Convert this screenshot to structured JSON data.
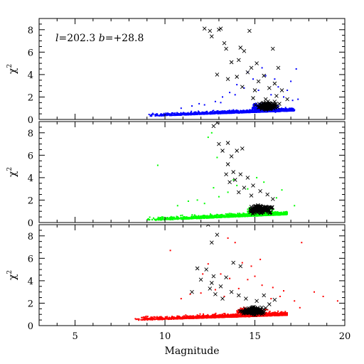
{
  "chart_data": {
    "type": "scatter",
    "xlabel": "Magnitude",
    "xlim": [
      3,
      20
    ],
    "x_ticks": [
      5,
      10,
      15,
      20
    ],
    "x_tick_labels": [
      "5",
      "10",
      "15",
      "20"
    ],
    "shared_x": true,
    "ylabel": "χ",
    "ylabel_superscript": "2",
    "annotation": {
      "l_label": "l",
      "l_value": "=202.3",
      "b_label": "b",
      "b_value": "=+28.8",
      "panel": 0
    },
    "panels": [
      {
        "ylim": [
          0,
          9
        ],
        "y_ticks": [
          0,
          2,
          4,
          6,
          8
        ],
        "y_tick_labels": [
          "0",
          "2",
          "4",
          "6",
          "8"
        ],
        "series": [
          {
            "marker": "dot",
            "color": "#0000ff",
            "cloud": {
              "x_range": [
                9,
                17.2
              ],
              "y_base": 0.35,
              "y_slope": 0.06,
              "y_spread": 0.25,
              "count": 1500
            },
            "dense_region": {
              "x_range": [
                14.5,
                16.5
              ],
              "y_center": 1.1,
              "y_spread": 0.5,
              "count": 600
            },
            "points": [
              [
                12.8,
                1.6
              ],
              [
                13.2,
                2.0
              ],
              [
                13.6,
                2.4
              ],
              [
                14.0,
                3.1
              ],
              [
                14.4,
                2.8
              ],
              [
                14.9,
                3.6
              ],
              [
                15.2,
                2.6
              ],
              [
                15.6,
                3.9
              ],
              [
                15.9,
                2.2
              ],
              [
                16.3,
                2.9
              ],
              [
                16.6,
                2.0
              ],
              [
                17.0,
                3.4
              ],
              [
                17.3,
                4.5
              ],
              [
                17.4,
                1.8
              ],
              [
                13.9,
                2.2
              ],
              [
                14.6,
                4.2
              ],
              [
                15.4,
                4.6
              ],
              [
                16.1,
                3.6
              ],
              [
                13.1,
                1.5
              ],
              [
                12.2,
                1.3
              ],
              [
                11.5,
                1.2
              ],
              [
                10.9,
                1.0
              ],
              [
                11.9,
                1.4
              ],
              [
                16.8,
                2.6
              ],
              [
                17.1,
                1.7
              ]
            ]
          },
          {
            "marker": "x",
            "color": "#000000",
            "points": [
              [
                12.2,
                8.1
              ],
              [
                12.5,
                7.9
              ],
              [
                12.6,
                7.4
              ],
              [
                13.0,
                8.0
              ],
              [
                13.1,
                8.1
              ],
              [
                14.7,
                7.9
              ],
              [
                13.3,
                6.8
              ],
              [
                13.4,
                6.3
              ],
              [
                14.2,
                6.4
              ],
              [
                14.4,
                6.1
              ],
              [
                13.7,
                5.1
              ],
              [
                16.0,
                6.3
              ],
              [
                14.1,
                5.3
              ],
              [
                15.1,
                5.0
              ],
              [
                16.3,
                4.6
              ],
              [
                14.6,
                4.2
              ],
              [
                14.8,
                4.6
              ],
              [
                12.9,
                4.0
              ],
              [
                13.5,
                3.6
              ],
              [
                14.0,
                3.8
              ],
              [
                15.2,
                3.4
              ],
              [
                15.5,
                3.9
              ],
              [
                14.3,
                2.9
              ],
              [
                15.0,
                2.6
              ],
              [
                15.8,
                2.8
              ],
              [
                16.1,
                3.2
              ],
              [
                16.5,
                2.6
              ],
              [
                14.9,
                1.9
              ],
              [
                15.6,
                1.8
              ],
              [
                16.2,
                2.1
              ],
              [
                16.8,
                1.8
              ]
            ],
            "dense_region": {
              "x_range": [
                14.8,
                16.6
              ],
              "y_center": 1.2,
              "y_spread": 0.5,
              "count": 140
            }
          }
        ]
      },
      {
        "ylim": [
          0,
          9
        ],
        "y_ticks": [
          0,
          2,
          4,
          6,
          8
        ],
        "y_tick_labels": [
          "0",
          "2",
          "4",
          "6",
          "8"
        ],
        "series": [
          {
            "marker": "dot",
            "color": "#00ff00",
            "cloud": {
              "x_range": [
                9.0,
                16.8
              ],
              "y_base": 0.25,
              "y_slope": 0.07,
              "y_spread": 0.3,
              "count": 1400
            },
            "dense_region": {
              "x_range": [
                14.3,
                16.3
              ],
              "y_center": 1.0,
              "y_spread": 0.5,
              "count": 500
            },
            "points": [
              [
                12.6,
                8.0
              ],
              [
                12.4,
                7.6
              ],
              [
                9.6,
                5.1
              ],
              [
                10.7,
                1.5
              ],
              [
                11.3,
                1.9
              ],
              [
                11.8,
                2.0
              ],
              [
                12.2,
                1.7
              ],
              [
                12.7,
                3.1
              ],
              [
                13.0,
                2.3
              ],
              [
                13.5,
                2.7
              ],
              [
                14.0,
                3.3
              ],
              [
                14.6,
                3.0
              ],
              [
                15.1,
                4.0
              ],
              [
                15.5,
                3.6
              ],
              [
                16.2,
                2.2
              ],
              [
                16.5,
                2.9
              ],
              [
                17.2,
                1.5
              ],
              [
                13.8,
                3.8
              ],
              [
                12.9,
                5.8
              ]
            ]
          },
          {
            "marker": "x",
            "color": "#000000",
            "points": [
              [
                12.9,
                8.9
              ],
              [
                12.7,
                8.6
              ],
              [
                13.0,
                7.0
              ],
              [
                13.2,
                6.4
              ],
              [
                13.5,
                7.1
              ],
              [
                14.0,
                6.4
              ],
              [
                13.7,
                5.9
              ],
              [
                14.3,
                6.6
              ],
              [
                13.5,
                5.2
              ],
              [
                13.4,
                4.3
              ],
              [
                13.8,
                4.5
              ],
              [
                13.9,
                3.8
              ],
              [
                14.2,
                4.3
              ],
              [
                14.6,
                4.0
              ],
              [
                13.6,
                3.6
              ],
              [
                14.4,
                3.1
              ],
              [
                14.9,
                3.3
              ],
              [
                15.3,
                2.8
              ],
              [
                15.7,
                2.5
              ],
              [
                16.0,
                2.1
              ],
              [
                14.1,
                2.7
              ],
              [
                14.8,
                2.4
              ]
            ],
            "dense_region": {
              "x_range": [
                14.3,
                16.4
              ],
              "y_center": 1.2,
              "y_spread": 0.55,
              "count": 130
            }
          }
        ]
      },
      {
        "ylim": [
          0,
          9
        ],
        "y_ticks": [
          0,
          2,
          4,
          6,
          8
        ],
        "y_tick_labels": [
          "0",
          "2",
          "4",
          "6",
          "8"
        ],
        "series": [
          {
            "marker": "dot",
            "color": "#ff0000",
            "cloud": {
              "x_range": [
                8.3,
                16.8
              ],
              "y_base": 0.55,
              "y_slope": 0.055,
              "y_spread": 0.3,
              "count": 1600
            },
            "dense_region": {
              "x_range": [
                13.6,
                16.0
              ],
              "y_center": 1.2,
              "y_spread": 0.5,
              "count": 600
            },
            "points": [
              [
                10.3,
                6.7
              ],
              [
                13.5,
                7.8
              ],
              [
                13.9,
                7.4
              ],
              [
                14.3,
                5.6
              ],
              [
                14.8,
                5.3
              ],
              [
                15.3,
                5.9
              ],
              [
                12.4,
                5.5
              ],
              [
                12.1,
                4.6
              ],
              [
                13.1,
                4.6
              ],
              [
                13.6,
                4.2
              ],
              [
                14.6,
                4.1
              ],
              [
                15.0,
                4.4
              ],
              [
                15.4,
                3.6
              ],
              [
                16.6,
                3.1
              ],
              [
                16.4,
                2.6
              ],
              [
                17.2,
                2.2
              ],
              [
                17.5,
                1.6
              ],
              [
                18.3,
                3.0
              ],
              [
                19.6,
                2.2
              ],
              [
                18.8,
                2.6
              ],
              [
                17.6,
                7.4
              ],
              [
                10.9,
                2.4
              ],
              [
                11.4,
                2.8
              ],
              [
                12.0,
                2.9
              ],
              [
                12.8,
                3.2
              ],
              [
                13.3,
                2.6
              ],
              [
                14.1,
                3.3
              ],
              [
                15.9,
                2.4
              ],
              [
                16.0,
                3.4
              ]
            ]
          },
          {
            "marker": "x",
            "color": "#000000",
            "points": [
              [
                12.4,
                9.0
              ],
              [
                12.9,
                8.1
              ],
              [
                12.6,
                7.4
              ],
              [
                13.8,
                5.6
              ],
              [
                14.2,
                5.3
              ],
              [
                11.8,
                5.1
              ],
              [
                12.3,
                5.0
              ],
              [
                12.0,
                4.1
              ],
              [
                12.7,
                4.4
              ],
              [
                13.4,
                4.3
              ],
              [
                12.6,
                3.8
              ],
              [
                13.1,
                3.5
              ],
              [
                11.5,
                3.0
              ],
              [
                12.5,
                3.3
              ],
              [
                12.8,
                2.8
              ],
              [
                13.2,
                2.4
              ],
              [
                13.7,
                3.0
              ],
              [
                14.1,
                2.7
              ],
              [
                14.5,
                2.4
              ],
              [
                15.1,
                2.2
              ],
              [
                15.5,
                2.7
              ],
              [
                15.8,
                1.9
              ],
              [
                16.1,
                2.3
              ]
            ],
            "dense_region": {
              "x_range": [
                13.9,
                15.9
              ],
              "y_center": 1.3,
              "y_spread": 0.5,
              "count": 150
            }
          }
        ]
      }
    ]
  }
}
